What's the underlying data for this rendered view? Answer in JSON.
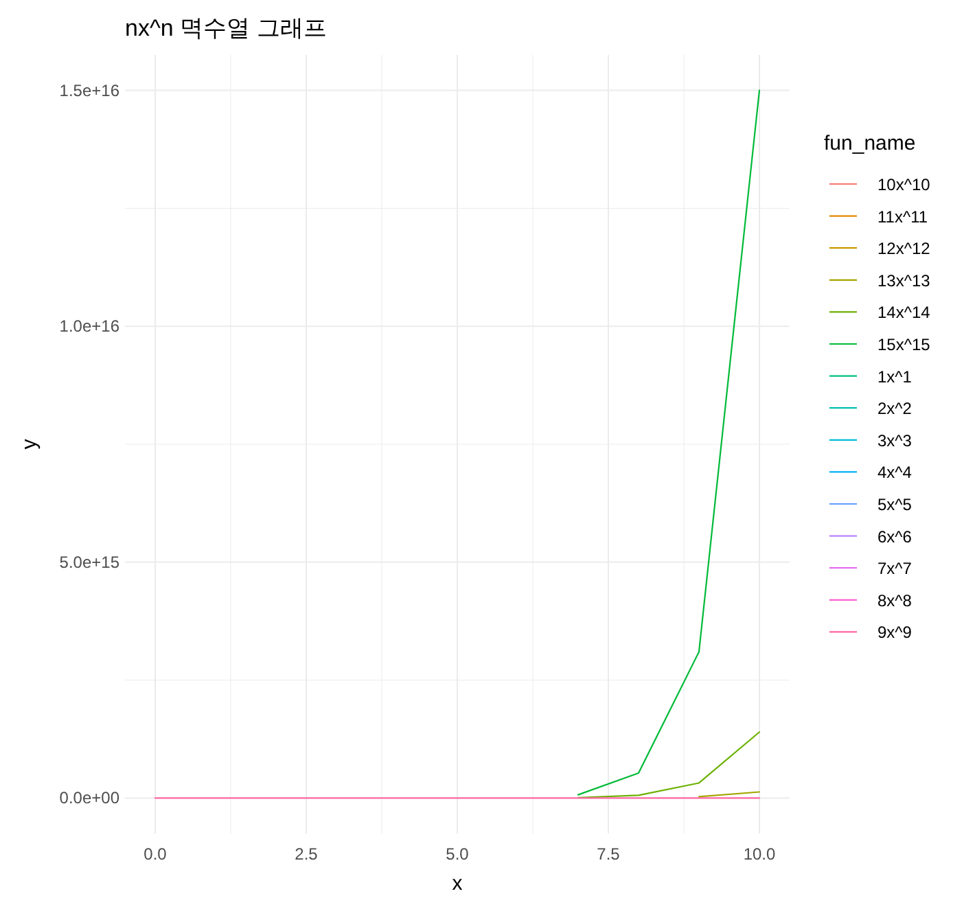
{
  "chart_data": {
    "type": "line",
    "title": "nx^n 멱수열 그래프",
    "xlabel": "x",
    "ylabel": "y",
    "legend_title": "fun_name",
    "legend": "right",
    "grid": true,
    "x": [
      0,
      1,
      2,
      3,
      4,
      5,
      6,
      7,
      8,
      9,
      10
    ],
    "xlim": [
      -0.5,
      10.5
    ],
    "xticks": [
      {
        "value": 0,
        "label": "0.0"
      },
      {
        "value": 2.5,
        "label": "2.5"
      },
      {
        "value": 5,
        "label": "5.0"
      },
      {
        "value": 7.5,
        "label": "7.5"
      },
      {
        "value": 10,
        "label": "10.0"
      }
    ],
    "ylim": [
      -750000000000000.0,
      1.575e+16
    ],
    "yticks": [
      {
        "value": 0,
        "label": "0.0e+00"
      },
      {
        "value": 5000000000000000.0,
        "label": "5.0e+15"
      },
      {
        "value": 1e+16,
        "label": "1.0e+16"
      },
      {
        "value": 1.5e+16,
        "label": "1.5e+16"
      }
    ],
    "series": [
      {
        "name": "10x^10",
        "color": "#F8766D",
        "values": [
          null,
          null,
          null,
          null,
          null,
          null,
          null,
          null,
          null,
          null,
          null
        ]
      },
      {
        "name": "11x^11",
        "color": "#E58700",
        "values": [
          null,
          null,
          null,
          null,
          null,
          null,
          null,
          null,
          null,
          null,
          null
        ]
      },
      {
        "name": "12x^12",
        "color": "#C99800",
        "values": [
          null,
          null,
          null,
          null,
          null,
          null,
          null,
          null,
          null,
          null,
          null
        ]
      },
      {
        "name": "13x^13",
        "color": "#A3A500",
        "values": [
          null,
          null,
          null,
          null,
          null,
          null,
          null,
          null,
          null,
          30000000000000.0,
          130000000000000.0
        ]
      },
      {
        "name": "14x^14",
        "color": "#6BB100",
        "values": [
          null,
          null,
          null,
          null,
          null,
          null,
          null,
          10000000000000.0,
          60000000000000.0,
          320000000000000.0,
          1400000000000000.0
        ]
      },
      {
        "name": "15x^15",
        "color": "#00BA38",
        "values": [
          null,
          null,
          null,
          null,
          null,
          null,
          null,
          70000000000000.0,
          530000000000000.0,
          3100000000000000.0,
          1.5e+16
        ]
      },
      {
        "name": "1x^1",
        "color": "#00BF7D",
        "values": [
          null,
          null,
          null,
          null,
          null,
          null,
          null,
          null,
          null,
          null,
          null
        ]
      },
      {
        "name": "2x^2",
        "color": "#00C0AF",
        "values": [
          null,
          null,
          null,
          null,
          null,
          null,
          null,
          null,
          null,
          null,
          null
        ]
      },
      {
        "name": "3x^3",
        "color": "#00BCD8",
        "values": [
          null,
          null,
          null,
          null,
          null,
          null,
          null,
          null,
          null,
          null,
          null
        ]
      },
      {
        "name": "4x^4",
        "color": "#00B0F6",
        "values": [
          null,
          null,
          null,
          null,
          null,
          null,
          null,
          null,
          null,
          null,
          null
        ]
      },
      {
        "name": "5x^5",
        "color": "#619CFF",
        "values": [
          null,
          null,
          null,
          null,
          null,
          null,
          null,
          null,
          null,
          null,
          null
        ]
      },
      {
        "name": "6x^6",
        "color": "#B983FF",
        "values": [
          null,
          null,
          null,
          null,
          null,
          null,
          null,
          null,
          null,
          null,
          null
        ]
      },
      {
        "name": "7x^7",
        "color": "#E76BF3",
        "values": [
          null,
          null,
          null,
          null,
          null,
          null,
          null,
          null,
          null,
          null,
          null
        ]
      },
      {
        "name": "8x^8",
        "color": "#FD61D1",
        "values": [
          null,
          null,
          null,
          null,
          null,
          null,
          null,
          null,
          null,
          null,
          null
        ]
      },
      {
        "name": "9x^9",
        "color": "#FF67A4",
        "values": [
          0,
          0,
          0,
          0,
          0,
          0,
          0,
          0,
          0,
          0,
          0
        ]
      }
    ]
  }
}
